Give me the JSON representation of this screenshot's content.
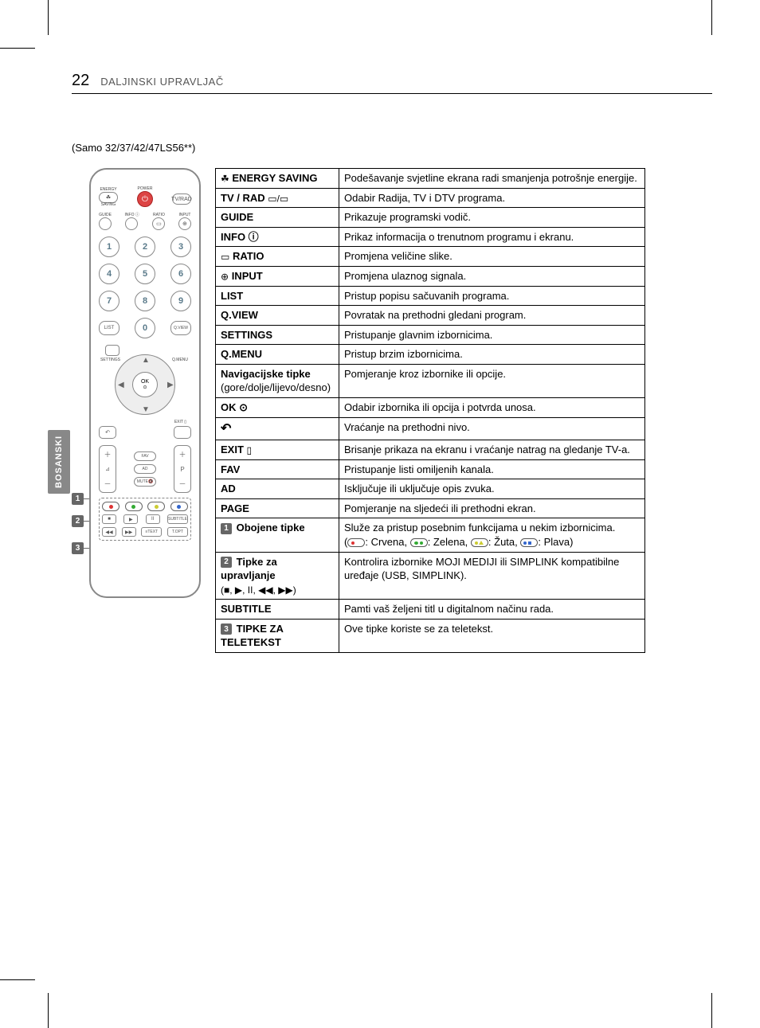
{
  "page": {
    "number": "22",
    "section": "DALJINSKI UPRAVLJAČ",
    "model_note": "(Samo 32/37/42/47LS56**)",
    "side_tab": "BOSANSKI"
  },
  "remote": {
    "top_labels": {
      "energy": "ENERGY",
      "saving": "SAVING",
      "power": "POWER",
      "tvrad": "TV/RAD"
    },
    "row2_labels": {
      "guide": "GUIDE",
      "info": "INFO ⓘ",
      "ratio": "RATIO",
      "input": "INPUT"
    },
    "numbers": [
      "1",
      "2",
      "3",
      "4",
      "5",
      "6",
      "7",
      "8",
      "9",
      "0"
    ],
    "list": "LIST",
    "qview": "Q.VIEW",
    "settings": "SETTINGS",
    "qmenu": "Q.MENU",
    "ok": "OK",
    "ok_sub": "⊙",
    "exit": "EXIT",
    "fav": "FAV",
    "ad": "AD",
    "mute": "MUTE",
    "page": "P",
    "page_top_sym": "⌃",
    "page_bot_sym": "⌄",
    "subtitle": "SUBTITLE",
    "topt": "T.OPT",
    "text": "TEXT"
  },
  "callouts": {
    "c1": "1",
    "c2": "2",
    "c3": "3"
  },
  "table": {
    "rows": [
      {
        "k_icon": "☘",
        "k": "ENERGY SAVING",
        "v": "Podešavanje svjetline ekrana radi smanjenja potrošnje energije."
      },
      {
        "k": "TV / RAD",
        "k_suffix_icon": "▭/▭",
        "v": "Odabir Radija, TV i DTV programa."
      },
      {
        "k": "GUIDE",
        "v": "Prikazuje programski vodič."
      },
      {
        "k": "INFO ⓘ",
        "v": "Prikaz informacija o trenutnom programu i ekranu."
      },
      {
        "k_icon": "▭",
        "k": "RATIO",
        "v": "Promjena veličine slike."
      },
      {
        "k_icon": "⊕",
        "k": "INPUT",
        "v": "Promjena ulaznog signala."
      },
      {
        "k": "LIST",
        "v": "Pristup popisu sačuvanih programa."
      },
      {
        "k": "Q.VIEW",
        "v": "Povratak na prethodni gledani program."
      },
      {
        "k": "SETTINGS",
        "v": "Pristupanje glavnim izbornicima."
      },
      {
        "k": "Q.MENU",
        "v": "Pristup brzim izbornicima."
      },
      {
        "k": "Navigacijske tipke",
        "k_sub": "(gore/dolje/lijevo/desno)",
        "v": "Pomjeranje kroz izbornike ili opcije."
      },
      {
        "k": "OK ⊙",
        "v": "Odabir izbornika ili opcija i potvrda unosa."
      },
      {
        "k_icon_only": "↶",
        "v": "Vraćanje na prethodni nivo."
      },
      {
        "k": "EXIT",
        "k_suffix_icon": "▯",
        "v": "Brisanje prikaza na ekranu i vraćanje natrag na gledanje TV-a."
      },
      {
        "k": "FAV",
        "v": "Pristupanje listi omiljenih kanala."
      },
      {
        "k": "AD",
        "v": "Isključuje ili uključuje opis zvuka."
      },
      {
        "k": "PAGE",
        "v": "Pomjeranje na sljedeći ili prethodni ekran."
      },
      {
        "badge": "1",
        "k": "Obojene tipke",
        "v": "Služe za pristup posebnim funkcijama u nekim izbornicima.",
        "v_extra_colors": true,
        "color_labels": {
          "r": "Crvena",
          "g": "Zelena",
          "y": "Žuta",
          "b": "Plava"
        }
      },
      {
        "badge": "2",
        "k": "Tipke za upravljanje",
        "k_sub_sym": "(■, ▶, II, ◀◀, ▶▶)",
        "v": "Kontrolira izbornike MOJI MEDIJI ili SIMPLINK kompatibilne uređaje (USB, SIMPLINK)."
      },
      {
        "k": "SUBTITLE",
        "v": "Pamti vaš željeni titl u digitalnom načinu rada."
      },
      {
        "badge": "3",
        "k": "TIPKE ZA TELETEKST",
        "v": "Ove tipke koriste se za teletekst."
      }
    ]
  },
  "colors": {
    "text": "#000000",
    "muted": "#555555",
    "remote_stroke": "#888888",
    "badge_bg": "#666666",
    "red": "#d33333",
    "green": "#33aa33",
    "yellow": "#cccc33",
    "blue": "#3366cc"
  }
}
